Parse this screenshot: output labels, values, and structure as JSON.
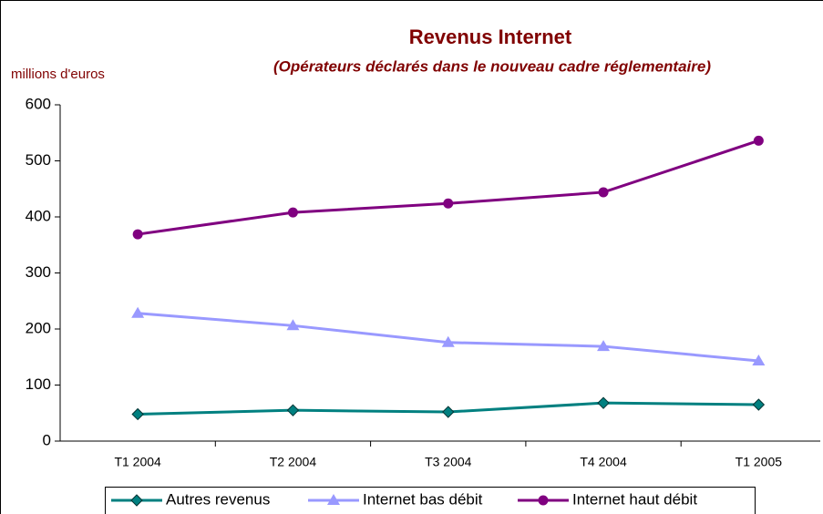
{
  "chart_data": {
    "type": "line",
    "title": "Revenus Internet",
    "subtitle": "(Opérateurs déclarés dans le nouveau cadre réglementaire)",
    "y_label": "millions d'euros",
    "categories": [
      "T1 2004",
      "T2 2004",
      "T3 2004",
      "T4 2004",
      "T1 2005"
    ],
    "series": [
      {
        "name": "Autres revenus",
        "color": "#008080",
        "marker": "diamond",
        "values": [
          48,
          55,
          52,
          68,
          65
        ]
      },
      {
        "name": "Internet bas débit",
        "color": "#9999ff",
        "marker": "triangle",
        "values": [
          228,
          206,
          176,
          169,
          143
        ]
      },
      {
        "name": "Internet haut débit",
        "color": "#800080",
        "marker": "circle",
        "values": [
          369,
          408,
          424,
          444,
          536
        ]
      }
    ],
    "ylim": [
      0,
      600
    ],
    "yticks": [
      0,
      100,
      200,
      300,
      400,
      500,
      600
    ],
    "grid": false,
    "legend": "bottom"
  }
}
